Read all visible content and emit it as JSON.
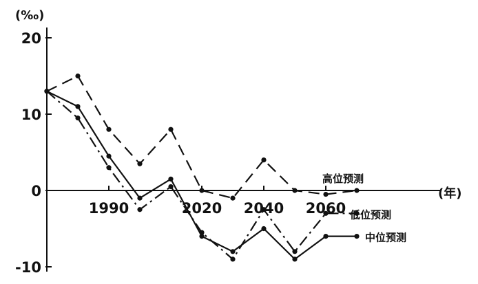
{
  "chart_data": {
    "type": "line",
    "y_unit": "(‰)",
    "x_unit": "(年)",
    "xlim": [
      1970,
      2090
    ],
    "ylim": [
      -10,
      20
    ],
    "x_tick_labels": [
      "1990",
      "2020",
      "2040",
      "2060"
    ],
    "x_tick_values": [
      1990,
      2020,
      2040,
      2060
    ],
    "y_tick_labels": [
      "20",
      "10",
      "0",
      "-10"
    ],
    "y_tick_values": [
      20,
      10,
      0,
      -10
    ],
    "series": [
      {
        "name": "高位预测",
        "style": "dashed",
        "x": [
          1970,
          1980,
          1990,
          2000,
          2010,
          2020,
          2030,
          2040,
          2050,
          2060,
          2070
        ],
        "y": [
          13,
          15,
          8,
          3.5,
          8,
          0,
          -1,
          4,
          0,
          -0.5,
          0
        ]
      },
      {
        "name": "中位预测",
        "style": "solid",
        "x": [
          1970,
          1980,
          1990,
          2000,
          2010,
          2020,
          2030,
          2040,
          2050,
          2060,
          2070
        ],
        "y": [
          13,
          11,
          4.5,
          -1,
          1.5,
          -6,
          -8,
          -5,
          -9,
          -6,
          -6
        ]
      },
      {
        "name": "低位预测",
        "style": "dashdot",
        "x": [
          1970,
          1980,
          1990,
          2000,
          2010,
          2020,
          2030,
          2040,
          2050,
          2060,
          2070
        ],
        "y": [
          13,
          9.5,
          3,
          -2.5,
          0.5,
          -5.5,
          -9,
          -2.5,
          -8,
          -3,
          -3
        ]
      }
    ]
  }
}
